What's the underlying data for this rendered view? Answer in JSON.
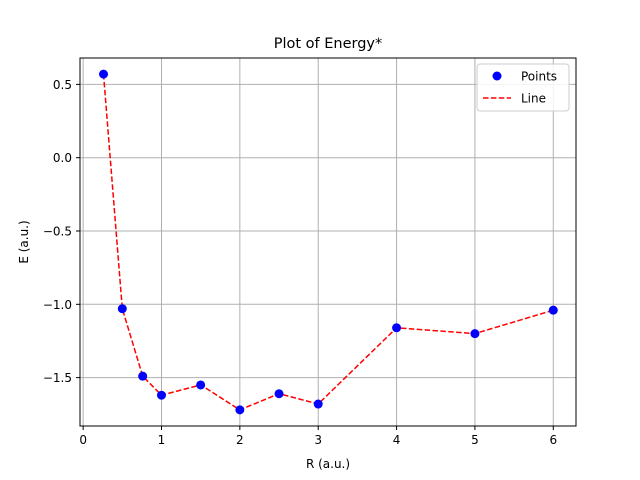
{
  "chart_data": {
    "type": "scatter",
    "title": "Plot of Energy*",
    "xlabel": "R (a.u.)",
    "ylabel": "E (a.u.)",
    "xlim": [
      -0.04,
      6.29
    ],
    "ylim": [
      -1.83,
      0.68
    ],
    "x_ticks": [
      0,
      1,
      2,
      3,
      4,
      5,
      6
    ],
    "x_tick_labels": [
      "0",
      "1",
      "2",
      "3",
      "4",
      "5",
      "6"
    ],
    "y_ticks": [
      0.5,
      0.0,
      -0.5,
      -1.0,
      -1.5
    ],
    "y_tick_labels": [
      "0.5",
      "0.0",
      "−0.5",
      "−1.0",
      "−1.5"
    ],
    "grid": true,
    "legend_position": "top-right",
    "x": [
      0.26,
      0.5,
      0.76,
      1.0,
      1.5,
      2.0,
      2.5,
      3.0,
      4.0,
      5.0,
      6.0
    ],
    "series": [
      {
        "name": "Points",
        "kind": "scatter",
        "color": "#0000ff",
        "values": [
          0.57,
          -1.03,
          -1.49,
          -1.62,
          -1.55,
          -1.72,
          -1.61,
          -1.68,
          -1.16,
          -1.2,
          -1.04
        ]
      },
      {
        "name": "Line",
        "kind": "line",
        "style": "dashed",
        "color": "#ff0000",
        "values": [
          0.57,
          -1.03,
          -1.49,
          -1.62,
          -1.55,
          -1.72,
          -1.61,
          -1.68,
          -1.16,
          -1.2,
          -1.04
        ]
      }
    ]
  }
}
